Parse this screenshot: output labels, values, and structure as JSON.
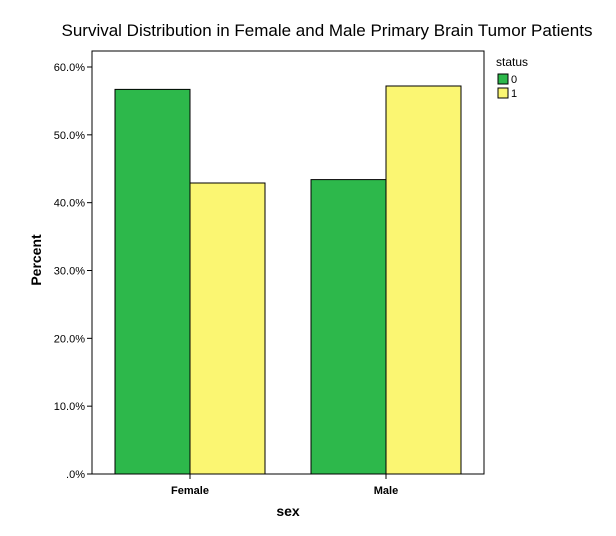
{
  "chart_data": {
    "type": "bar",
    "title": "Survival Distribution in Female and Male Primary Brain Tumor Patients",
    "xlabel": "sex",
    "ylabel": "Percent",
    "categories": [
      "Female",
      "Male"
    ],
    "series": [
      {
        "name": "0",
        "values": [
          56.7,
          43.4
        ],
        "color": "#2db84b"
      },
      {
        "name": "1",
        "values": [
          42.9,
          57.2
        ],
        "color": "#fbf672"
      }
    ],
    "ylim": [
      0,
      60
    ],
    "yticks": [
      0,
      10,
      20,
      30,
      40,
      50,
      60
    ],
    "ytick_labels": [
      ".0%",
      "10.0%",
      "20.0%",
      "30.0%",
      "40.0%",
      "50.0%",
      "60.0%"
    ],
    "legend": {
      "title": "status",
      "position": "top-right"
    },
    "grid": false
  }
}
